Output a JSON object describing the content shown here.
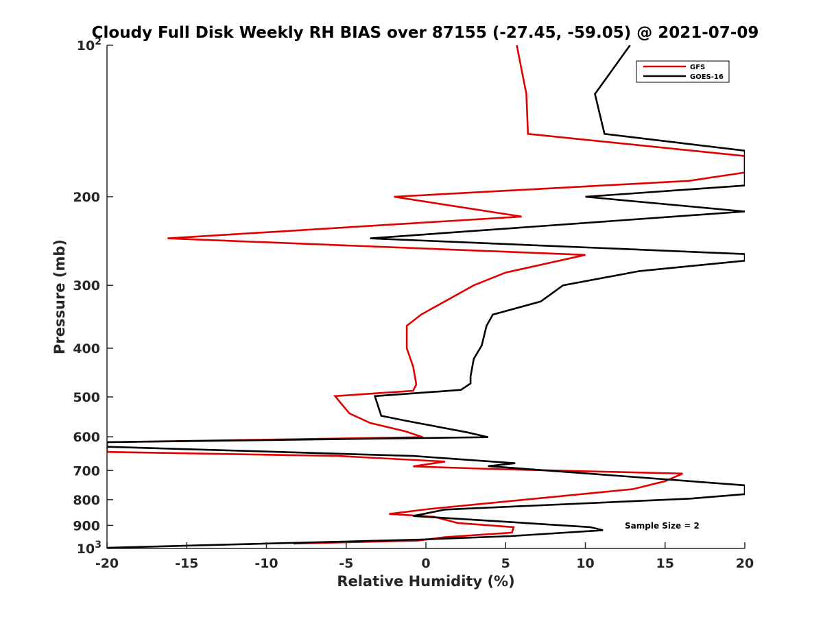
{
  "chart_data": {
    "type": "line",
    "title": "Cloudy Full Disk Weekly RH BIAS over 87155 (-27.45, -59.05) @ 2021-07-09",
    "xlabel": "Relative Humidity (%)",
    "ylabel": "Pressure (mb)",
    "xlim": [
      -20,
      20
    ],
    "ylim": [
      100,
      1000
    ],
    "yscale": "log",
    "y_reversed": true,
    "x_ticks": [
      "-20",
      "-15",
      "-10",
      "-5",
      "0",
      "5",
      "10",
      "15",
      "20"
    ],
    "y_ticks": [
      {
        "value": 100,
        "base": "10",
        "exp": "2",
        "label": ""
      },
      {
        "value": 200,
        "label": "200"
      },
      {
        "value": 300,
        "label": "300"
      },
      {
        "value": 400,
        "label": "400"
      },
      {
        "value": 500,
        "label": "500"
      },
      {
        "value": 600,
        "label": "600"
      },
      {
        "value": 700,
        "label": "700"
      },
      {
        "value": 800,
        "label": "800"
      },
      {
        "value": 900,
        "label": "900"
      },
      {
        "value": 1000,
        "base": "10",
        "exp": "3",
        "label": ""
      }
    ],
    "legend_position": "top-right",
    "series": [
      {
        "name": "GFS",
        "color": "#e00000",
        "points": [
          [
            5.7,
            100
          ],
          [
            6.3,
            125
          ],
          [
            6.4,
            150
          ],
          [
            20,
            166
          ],
          [
            20,
            179
          ],
          [
            16.5,
            186
          ],
          [
            -2.0,
            200
          ],
          [
            6.0,
            219
          ],
          [
            -16.2,
            242
          ],
          [
            10.0,
            261
          ],
          [
            5.0,
            283
          ],
          [
            3.0,
            300
          ],
          [
            -0.3,
            343
          ],
          [
            -1.2,
            361
          ],
          [
            -1.2,
            400
          ],
          [
            -0.8,
            435
          ],
          [
            -0.6,
            472
          ],
          [
            -0.8,
            486
          ],
          [
            -5.7,
            498
          ],
          [
            -4.8,
            539
          ],
          [
            -3.5,
            563
          ],
          [
            -1.3,
            585
          ],
          [
            -0.2,
            601
          ],
          [
            -20,
            615
          ],
          [
            -20,
            643
          ],
          [
            -5.5,
            655
          ],
          [
            1.2,
            672
          ],
          [
            -0.8,
            687
          ],
          [
            4.0,
            695
          ],
          [
            16.1,
            710
          ],
          [
            15.0,
            735
          ],
          [
            13.0,
            762
          ],
          [
            0.2,
            835
          ],
          [
            -2.3,
            854
          ],
          [
            0.5,
            865
          ],
          [
            2.0,
            890
          ],
          [
            5.5,
            907
          ],
          [
            5.4,
            930
          ],
          [
            1.2,
            950
          ],
          [
            -0.5,
            965
          ],
          [
            -8.3,
            978
          ]
        ]
      },
      {
        "name": "GOES-16",
        "color": "#000000",
        "points": [
          [
            12.8,
            100
          ],
          [
            10.6,
            125
          ],
          [
            11.2,
            150
          ],
          [
            20,
            162
          ],
          [
            20,
            190
          ],
          [
            10.0,
            200
          ],
          [
            20,
            214
          ],
          [
            -3.5,
            242
          ],
          [
            20,
            260
          ],
          [
            20,
            268
          ],
          [
            13.4,
            281
          ],
          [
            8.6,
            300
          ],
          [
            7.2,
            323
          ],
          [
            4.2,
            343
          ],
          [
            3.8,
            361
          ],
          [
            3.5,
            395
          ],
          [
            3.0,
            420
          ],
          [
            2.8,
            455
          ],
          [
            2.8,
            470
          ],
          [
            2.2,
            484
          ],
          [
            -3.2,
            498
          ],
          [
            -2.8,
            545
          ],
          [
            -1.2,
            558
          ],
          [
            2.6,
            588
          ],
          [
            3.9,
            601
          ],
          [
            -20,
            615
          ],
          [
            -20,
            628
          ],
          [
            -0.8,
            655
          ],
          [
            5.6,
            677
          ],
          [
            3.9,
            686
          ],
          [
            10.2,
            710
          ],
          [
            20,
            749
          ],
          [
            20,
            780
          ],
          [
            16.6,
            796
          ],
          [
            1.2,
            837
          ],
          [
            -0.8,
            862
          ],
          [
            5.0,
            885
          ],
          [
            10.3,
            907
          ],
          [
            11.1,
            920
          ],
          [
            5.3,
            945
          ],
          [
            -0.3,
            960
          ],
          [
            -20,
            997
          ]
        ]
      }
    ],
    "annotation": "Sample Size = 2"
  }
}
